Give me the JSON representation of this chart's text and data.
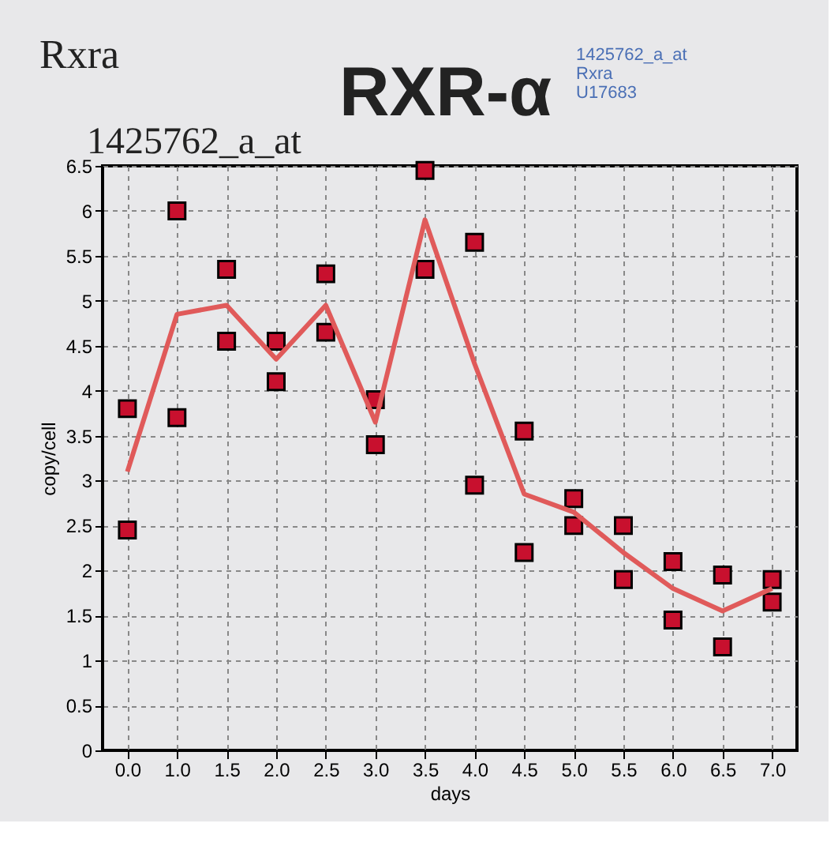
{
  "chart_data": {
    "type": "scatter",
    "title": "RXR-α",
    "xlabel": "days",
    "ylabel": "copy/cell",
    "annotations": [
      "Rxra",
      "1425762_a_at",
      "1425762_a_at",
      "Rxra",
      "U17683"
    ],
    "categories": [
      "0.0",
      "1.0",
      "1.5",
      "2.0",
      "2.5",
      "3.0",
      "3.5",
      "4.0",
      "4.5",
      "5.0",
      "5.5",
      "6.0",
      "6.5",
      "7.0"
    ],
    "series": [
      {
        "type": "scatter",
        "color": "#c8102e",
        "marker": "square",
        "x": [
          "0.0",
          "0.0",
          "1.0",
          "1.0",
          "1.5",
          "1.5",
          "2.0",
          "2.0",
          "2.5",
          "2.5",
          "3.0",
          "3.0",
          "3.5",
          "3.5",
          "4.0",
          "4.0",
          "4.5",
          "4.5",
          "5.0",
          "5.0",
          "5.5",
          "5.5",
          "6.0",
          "6.0",
          "6.5",
          "6.5",
          "7.0",
          "7.0"
        ],
        "values": [
          3.8,
          2.45,
          6.0,
          3.7,
          5.35,
          4.55,
          4.55,
          4.1,
          5.3,
          4.65,
          3.9,
          3.4,
          6.45,
          5.35,
          5.65,
          2.95,
          3.55,
          2.2,
          2.8,
          2.5,
          2.5,
          1.9,
          2.1,
          1.45,
          1.95,
          1.15,
          1.9,
          1.65
        ]
      },
      {
        "type": "line",
        "color": "#e05a5a",
        "marker": "none",
        "values": [
          3.1,
          4.85,
          4.95,
          4.35,
          4.95,
          3.65,
          5.9,
          4.3,
          2.85,
          2.65,
          2.2,
          1.8,
          1.55,
          1.8
        ]
      }
    ],
    "ylim": [
      0,
      6.5
    ],
    "yticks": [
      0,
      0.5,
      1,
      1.5,
      2,
      2.5,
      3,
      3.5,
      4,
      4.5,
      5,
      5.5,
      6,
      6.5
    ],
    "grid": true
  }
}
